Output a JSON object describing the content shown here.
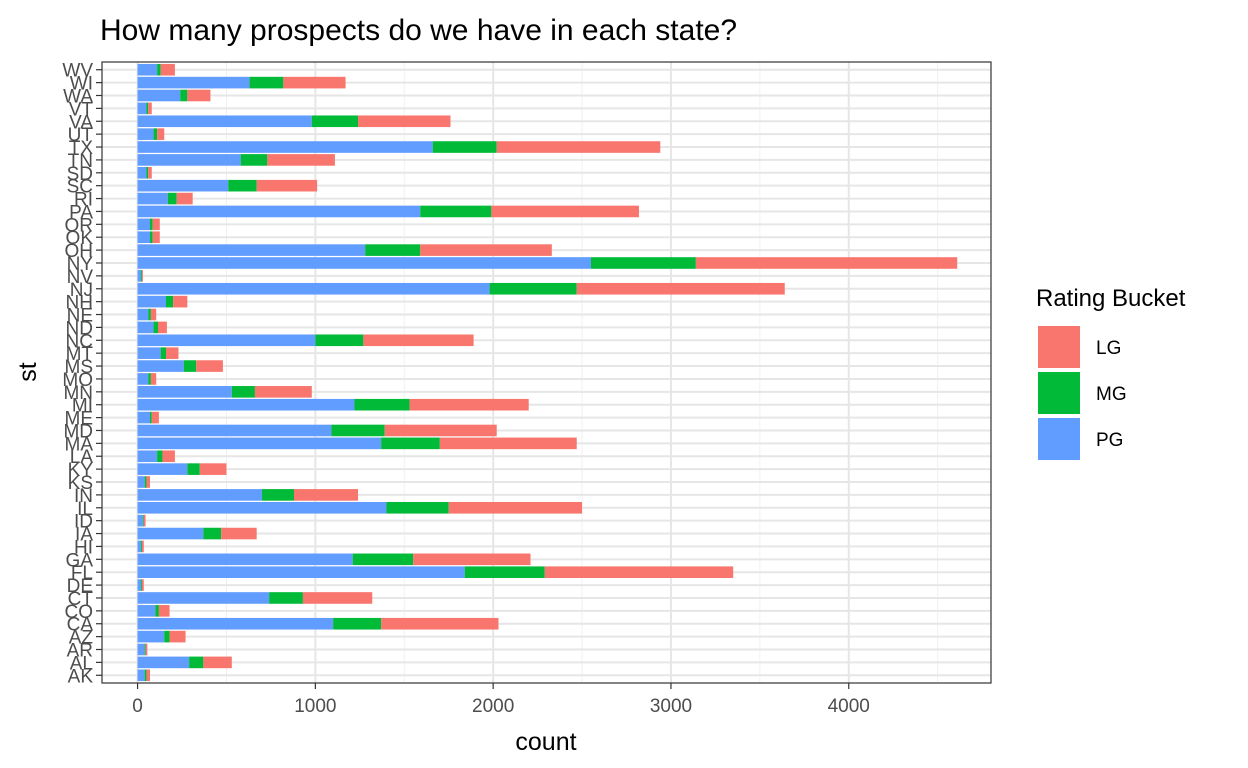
{
  "chart_data": {
    "type": "bar",
    "orientation": "horizontal",
    "stacked": true,
    "title": "How many prospects do we have in each state?",
    "xlabel": "count",
    "ylabel": "st",
    "xlim": [
      -200,
      4800
    ],
    "xticks": [
      0,
      1000,
      2000,
      3000,
      4000
    ],
    "grid": true,
    "legend": {
      "title": "Rating Bucket",
      "position": "right"
    },
    "categories": [
      "AK",
      "AL",
      "AR",
      "AZ",
      "CA",
      "CO",
      "CT",
      "DE",
      "FL",
      "GA",
      "HI",
      "IA",
      "ID",
      "IL",
      "IN",
      "KS",
      "KY",
      "LA",
      "MA",
      "MD",
      "ME",
      "MI",
      "MN",
      "MO",
      "MS",
      "MT",
      "NC",
      "ND",
      "NE",
      "NH",
      "NJ",
      "NV",
      "NY",
      "OH",
      "OK",
      "OR",
      "PA",
      "RI",
      "SC",
      "SD",
      "TN",
      "TX",
      "UT",
      "VA",
      "VT",
      "WA",
      "WI",
      "WV"
    ],
    "series": [
      {
        "name": "PG",
        "color": "#619CFF",
        "values": [
          40,
          290,
          40,
          150,
          1100,
          100,
          740,
          20,
          1840,
          1210,
          20,
          370,
          30,
          1400,
          700,
          40,
          280,
          110,
          1370,
          1090,
          70,
          1220,
          530,
          60,
          260,
          130,
          1000,
          90,
          60,
          160,
          1980,
          20,
          2550,
          1280,
          70,
          70,
          1590,
          170,
          510,
          50,
          580,
          1660,
          90,
          980,
          50,
          240,
          630,
          110
        ]
      },
      {
        "name": "MG",
        "color": "#00BA38",
        "values": [
          10,
          80,
          5,
          30,
          270,
          20,
          190,
          5,
          450,
          340,
          5,
          100,
          5,
          350,
          180,
          10,
          70,
          30,
          330,
          300,
          10,
          310,
          130,
          15,
          70,
          30,
          270,
          25,
          15,
          40,
          490,
          5,
          590,
          310,
          15,
          15,
          400,
          50,
          160,
          10,
          150,
          360,
          20,
          260,
          10,
          40,
          190,
          20
        ]
      },
      {
        "name": "LG",
        "color": "#F8766D",
        "values": [
          20,
          160,
          10,
          90,
          660,
          60,
          390,
          10,
          1060,
          660,
          10,
          200,
          10,
          750,
          360,
          20,
          150,
          70,
          770,
          630,
          40,
          670,
          320,
          30,
          150,
          70,
          620,
          50,
          30,
          80,
          1170,
          5,
          1470,
          740,
          40,
          40,
          830,
          90,
          340,
          20,
          380,
          920,
          40,
          520,
          20,
          130,
          350,
          80
        ]
      }
    ]
  }
}
